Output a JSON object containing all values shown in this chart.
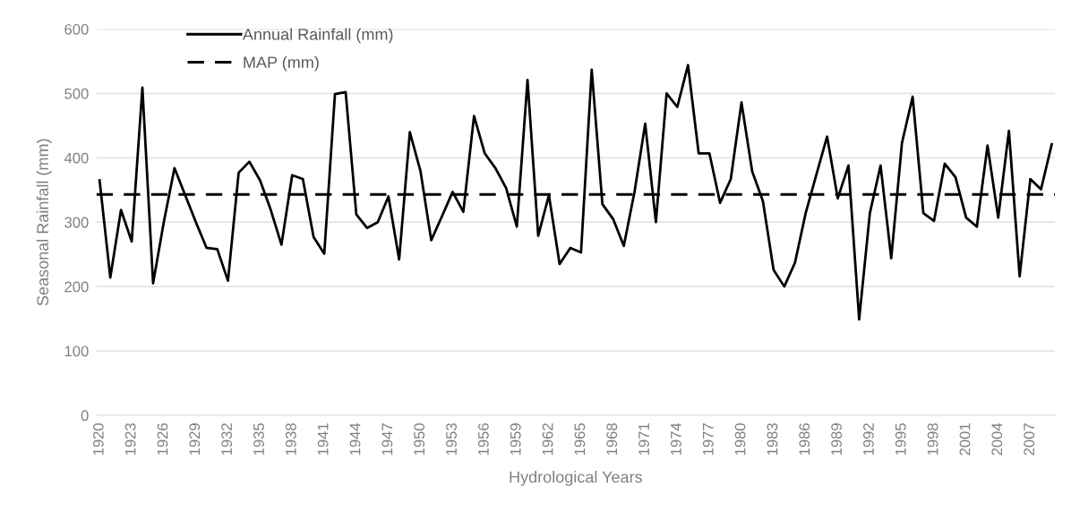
{
  "chart_data": {
    "type": "line",
    "xlabel": "Hydrological Years",
    "ylabel": "Seasonal Rainfall (mm)",
    "categories": [
      "1920",
      null,
      null,
      "1923",
      null,
      null,
      "1926",
      null,
      null,
      "1929",
      null,
      null,
      "1932",
      null,
      null,
      "1935",
      null,
      null,
      "1938",
      null,
      null,
      "1941",
      null,
      null,
      "1944",
      null,
      null,
      "1947",
      null,
      null,
      "1950",
      null,
      null,
      "1953",
      null,
      null,
      "1956",
      null,
      null,
      "1959",
      null,
      null,
      "1962",
      null,
      null,
      "1965",
      null,
      null,
      "1968",
      null,
      null,
      "1971",
      null,
      null,
      "1974",
      null,
      null,
      "1977",
      null,
      null,
      "1980",
      null,
      null,
      "1983",
      null,
      null,
      "1986",
      null,
      null,
      "1989",
      null,
      null,
      "1992",
      null,
      null,
      "1995",
      null,
      null,
      "1998",
      null,
      null,
      "2001",
      null,
      null,
      "2004",
      null,
      null,
      "2007",
      null,
      null
    ],
    "series": [
      {
        "name": "Annual Rainfall (mm)",
        "color": "#000000",
        "values": [
          365,
          214,
          319,
          270,
          509,
          205,
          300,
          384,
          342,
          300,
          260,
          258,
          209,
          377,
          394,
          365,
          319,
          265,
          373,
          367,
          277,
          251,
          499,
          502,
          312,
          291,
          300,
          340,
          242,
          440,
          379,
          272,
          309,
          347,
          316,
          465,
          407,
          384,
          353,
          293,
          521,
          279,
          342,
          235,
          260,
          253,
          537,
          328,
          305,
          263,
          347,
          453,
          300,
          500,
          479,
          544,
          407,
          407,
          330,
          367,
          486,
          379,
          333,
          226,
          200,
          237,
          314,
          374,
          433,
          337,
          388,
          149,
          314,
          388,
          244,
          423,
          495,
          314,
          302,
          391,
          370,
          307,
          293,
          419,
          307,
          442,
          216,
          367,
          351,
          421
        ]
      }
    ],
    "ref_lines": [
      {
        "axis": "y",
        "value": 343,
        "label": "MAP (mm)",
        "color": "#000000",
        "line_style": "dashed"
      }
    ],
    "ylim": [
      0,
      600
    ],
    "yticks": [
      0,
      100,
      200,
      300,
      400,
      500,
      600
    ],
    "grid": "y",
    "legend": "top left",
    "line_style": "solid",
    "marker": "none"
  }
}
